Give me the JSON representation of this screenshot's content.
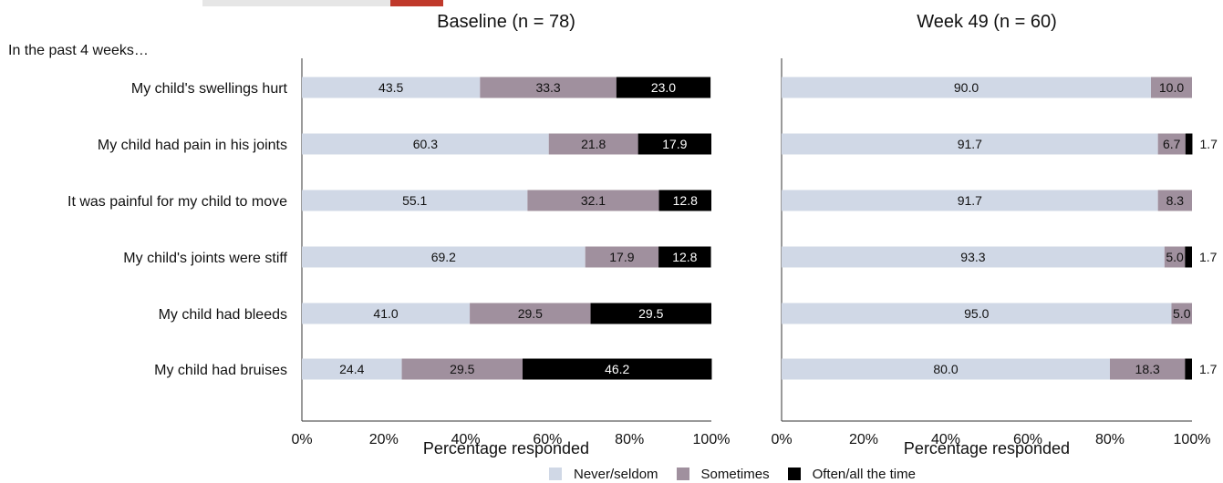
{
  "chart_data": [
    {
      "type": "bar",
      "orientation": "horizontal",
      "stacked": true,
      "title": "Baseline (n = 78)",
      "subtitle": "In the past 4 weeks…",
      "xlabel": "Percentage responded",
      "xlim": [
        0,
        100
      ],
      "x_tick_labels": [
        "0%",
        "20%",
        "40%",
        "60%",
        "80%",
        "100%"
      ],
      "categories": [
        "My child's swellings hurt",
        "My child had pain in his joints",
        "It was painful for my child to move",
        "My child's joints were stiff",
        "My child had bleeds",
        "My child had bruises"
      ],
      "series": [
        {
          "name": "Never/seldom",
          "values": [
            43.5,
            60.3,
            55.1,
            69.2,
            41.0,
            24.4
          ]
        },
        {
          "name": "Sometimes",
          "values": [
            33.3,
            21.8,
            32.1,
            17.9,
            29.5,
            29.5
          ]
        },
        {
          "name": "Often/all the time",
          "values": [
            23.0,
            17.9,
            12.8,
            12.8,
            29.5,
            46.2
          ]
        }
      ],
      "data_labels": [
        [
          "43.5",
          "33.3",
          "23.0"
        ],
        [
          "60.3",
          "21.8",
          "17.9"
        ],
        [
          "55.1",
          "32.1",
          "12.8"
        ],
        [
          "69.2",
          "17.9",
          "12.8"
        ],
        [
          "41.0",
          "29.5",
          "29.5"
        ],
        [
          "24.4",
          "29.5",
          "46.2"
        ]
      ]
    },
    {
      "type": "bar",
      "orientation": "horizontal",
      "stacked": true,
      "title": "Week 49 (n = 60)",
      "xlabel": "Percentage responded",
      "xlim": [
        0,
        100
      ],
      "x_tick_labels": [
        "0%",
        "20%",
        "40%",
        "60%",
        "80%",
        "100%"
      ],
      "categories": [
        "My child's swellings hurt",
        "My child had pain in his joints",
        "It was painful for my child to move",
        "My child's joints were stiff",
        "My child had bleeds",
        "My child had bruises"
      ],
      "series": [
        {
          "name": "Never/seldom",
          "values": [
            90.0,
            91.7,
            91.7,
            93.3,
            95.0,
            80.0
          ]
        },
        {
          "name": "Sometimes",
          "values": [
            10.0,
            6.7,
            8.3,
            5.0,
            5.0,
            18.3
          ]
        },
        {
          "name": "Often/all the time",
          "values": [
            0,
            1.7,
            0,
            1.7,
            0,
            1.7
          ]
        }
      ],
      "data_labels": [
        [
          "90.0",
          "10.0",
          ""
        ],
        [
          "91.7",
          "6.7",
          "1.7"
        ],
        [
          "91.7",
          "8.3",
          ""
        ],
        [
          "93.3",
          "5.0",
          "1.7"
        ],
        [
          "95.0",
          "5.0",
          ""
        ],
        [
          "80.0",
          "18.3",
          "1.7"
        ]
      ]
    }
  ],
  "legend": {
    "position": "bottom-center",
    "items": [
      {
        "label": "Never/seldom",
        "color": "#d0d8e6"
      },
      {
        "label": "Sometimes",
        "color": "#a0909e"
      },
      {
        "label": "Often/all the time",
        "color": "#000000"
      }
    ]
  },
  "colors": {
    "never": "#d0d8e6",
    "sometimes": "#a0909e",
    "often": "#000000",
    "axis": "#333333"
  }
}
